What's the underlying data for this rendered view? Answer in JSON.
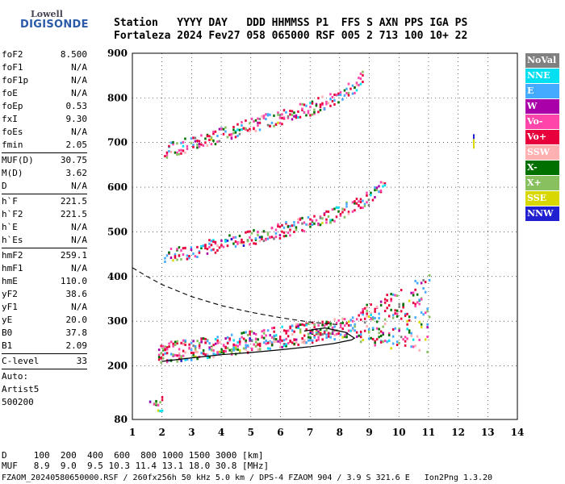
{
  "logo": {
    "line1": "Lowell",
    "line2": "DIGISONDE"
  },
  "header": {
    "line1": "Station   YYYY DAY   DDD HHMMSS P1  FFS S AXN PPS IGA PS",
    "line2": "Fortaleza 2024 Fev27 058 065000 RSF 005 2 713 100 10+ 22"
  },
  "params": {
    "group1": [
      {
        "name": "foF2",
        "value": "8.500"
      },
      {
        "name": "foF1",
        "value": "N/A"
      },
      {
        "name": "foF1p",
        "value": "N/A"
      },
      {
        "name": "foE",
        "value": "N/A"
      },
      {
        "name": "foEp",
        "value": "0.53"
      },
      {
        "name": "fxI",
        "value": "9.30"
      },
      {
        "name": "foEs",
        "value": "N/A"
      },
      {
        "name": "fmin",
        "value": "2.05"
      }
    ],
    "group2": [
      {
        "name": "MUF(D)",
        "value": "30.75"
      },
      {
        "name": "M(D)",
        "value": "3.62"
      },
      {
        "name": "D",
        "value": "N/A"
      }
    ],
    "group3": [
      {
        "name": "h`F",
        "value": "221.5"
      },
      {
        "name": "h`F2",
        "value": "221.5"
      },
      {
        "name": "h`E",
        "value": "N/A"
      },
      {
        "name": "h`Es",
        "value": "N/A"
      }
    ],
    "group4": [
      {
        "name": "hmF2",
        "value": "259.1"
      },
      {
        "name": "hmF1",
        "value": "N/A"
      },
      {
        "name": "hmE",
        "value": "110.0"
      },
      {
        "name": "yF2",
        "value": "38.6"
      },
      {
        "name": "yF1",
        "value": "N/A"
      },
      {
        "name": "yE",
        "value": "20.0"
      },
      {
        "name": "B0",
        "value": "37.8"
      },
      {
        "name": "B1",
        "value": "2.09"
      }
    ],
    "group5": [
      {
        "name": "C-level",
        "value": "33"
      }
    ],
    "auto_lines": [
      "Auto:",
      "Artist5",
      "500200"
    ]
  },
  "legend": [
    {
      "label": "NoVal",
      "color": "#808080"
    },
    {
      "label": "NNE",
      "color": "#00e0f0"
    },
    {
      "label": "E",
      "color": "#44aaff"
    },
    {
      "label": "W",
      "color": "#aa00aa"
    },
    {
      "label": "Vo-",
      "color": "#ff44aa"
    },
    {
      "label": "Vo+",
      "color": "#e8003c"
    },
    {
      "label": "SSW",
      "color": "#ffb0b0"
    },
    {
      "label": "X-",
      "color": "#007000"
    },
    {
      "label": "X+",
      "color": "#88c060"
    },
    {
      "label": "SSE",
      "color": "#d8d800"
    },
    {
      "label": "NNW",
      "color": "#2020d0"
    }
  ],
  "footer": {
    "line1": "D     100  200  400  600  800 1000 1500 3000 [km]",
    "line2": "MUF   8.9  9.0  9.5 10.3 11.4 13.1 18.0 30.8 [MHz]",
    "line3": "FZAOM_20240580650000.RSF / 260fx256h 50 kHz 5.0 km / DPS-4 FZAOM 904 / 3.9 S 321.6 E   Ion2Png 1.3.20"
  },
  "chart_data": {
    "type": "scatter",
    "title": "",
    "xlabel": "",
    "ylabel": "",
    "xlim": [
      1,
      14
    ],
    "ylim": [
      80,
      900
    ],
    "x_ticks": [
      1,
      2,
      3,
      4,
      5,
      6,
      7,
      8,
      9,
      10,
      11,
      12,
      13,
      14
    ],
    "y_ticks": [
      80,
      200,
      300,
      400,
      500,
      600,
      700,
      800,
      900
    ],
    "grid": true,
    "legend_position": "right",
    "traces": [
      {
        "name": "F trace (1-hop)",
        "points": [
          [
            1.8,
            228
          ],
          [
            2.5,
            236
          ],
          [
            3.5,
            242
          ],
          [
            4.5,
            252
          ],
          [
            5.5,
            262
          ],
          [
            6.5,
            272
          ],
          [
            7.5,
            282
          ],
          [
            8.2,
            290
          ],
          [
            9,
            296
          ],
          [
            10,
            306
          ],
          [
            11,
            318
          ]
        ]
      },
      {
        "name": "F trace (2-hop)",
        "points": [
          [
            2.0,
            445
          ],
          [
            3,
            460
          ],
          [
            4,
            475
          ],
          [
            5,
            490
          ],
          [
            6,
            505
          ],
          [
            7,
            525
          ],
          [
            8,
            545
          ],
          [
            9,
            580
          ],
          [
            9.5,
            610
          ]
        ]
      },
      {
        "name": "F trace (3-hop)",
        "points": [
          [
            2.0,
            682
          ],
          [
            3,
            700
          ],
          [
            4,
            720
          ],
          [
            5,
            740
          ],
          [
            6,
            760
          ],
          [
            7,
            780
          ],
          [
            8,
            805
          ],
          [
            8.5,
            830
          ],
          [
            8.8,
            855
          ]
        ]
      },
      {
        "name": "Es/low echoes",
        "points": [
          [
            1.5,
            110
          ],
          [
            2.0,
            118
          ]
        ]
      },
      {
        "name": "Oblique echo",
        "points": [
          [
            12.5,
            708
          ]
        ]
      }
    ],
    "profile_solid": [
      [
        2.0,
        210
      ],
      [
        3,
        218
      ],
      [
        4,
        225
      ],
      [
        5,
        230
      ],
      [
        6,
        236
      ],
      [
        7,
        243
      ],
      [
        7.8,
        250
      ],
      [
        8.4,
        258
      ],
      [
        8.5,
        262
      ],
      [
        8.2,
        275
      ],
      [
        7.5,
        285
      ],
      [
        6.8,
        278
      ]
    ],
    "profile_dashed": [
      [
        1.0,
        420
      ],
      [
        1.5,
        400
      ],
      [
        2.0,
        382
      ],
      [
        3,
        355
      ],
      [
        4,
        335
      ],
      [
        5,
        320
      ],
      [
        6,
        308
      ],
      [
        7,
        298
      ],
      [
        8,
        292
      ]
    ]
  }
}
